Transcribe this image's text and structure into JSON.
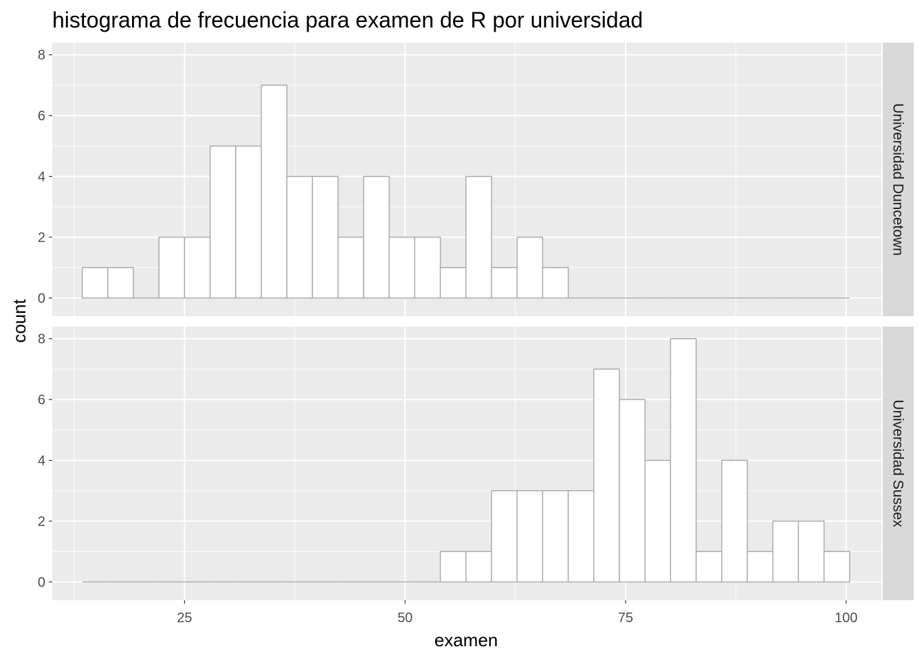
{
  "chart_data": {
    "type": "bar",
    "title": "histograma de frecuencia para examen de R por universidad",
    "xlabel": "examen",
    "ylabel": "count",
    "xlim": [
      10,
      104
    ],
    "ylim": [
      -0.6,
      8.4
    ],
    "x_ticks": [
      25,
      50,
      75,
      100
    ],
    "x_tick_labels": [
      "25",
      "50",
      "75",
      "100"
    ],
    "y_ticks": [
      0,
      2,
      4,
      6,
      8
    ],
    "y_tick_labels": [
      "0",
      "2",
      "4",
      "6",
      "8"
    ],
    "grid": true,
    "facet_layout": "rows",
    "bins": [
      {
        "start": 13.4,
        "end": 16.3
      },
      {
        "start": 16.3,
        "end": 19.2
      },
      {
        "start": 19.2,
        "end": 22.1
      },
      {
        "start": 22.1,
        "end": 25.0
      },
      {
        "start": 25.0,
        "end": 27.9
      },
      {
        "start": 27.9,
        "end": 30.8
      },
      {
        "start": 30.8,
        "end": 33.7
      },
      {
        "start": 33.7,
        "end": 36.6
      },
      {
        "start": 36.6,
        "end": 39.5
      },
      {
        "start": 39.5,
        "end": 42.4
      },
      {
        "start": 42.4,
        "end": 45.3
      },
      {
        "start": 45.3,
        "end": 48.2
      },
      {
        "start": 48.2,
        "end": 51.1
      },
      {
        "start": 51.1,
        "end": 54.0
      },
      {
        "start": 54.0,
        "end": 56.9
      },
      {
        "start": 56.9,
        "end": 59.8
      },
      {
        "start": 59.8,
        "end": 62.7
      },
      {
        "start": 62.7,
        "end": 65.6
      },
      {
        "start": 65.6,
        "end": 68.5
      },
      {
        "start": 68.5,
        "end": 71.4
      },
      {
        "start": 71.4,
        "end": 74.3
      },
      {
        "start": 74.3,
        "end": 77.2
      },
      {
        "start": 77.2,
        "end": 80.1
      },
      {
        "start": 80.1,
        "end": 83.0
      },
      {
        "start": 83.0,
        "end": 85.9
      },
      {
        "start": 85.9,
        "end": 88.8
      },
      {
        "start": 88.8,
        "end": 91.7
      },
      {
        "start": 91.7,
        "end": 94.6
      },
      {
        "start": 94.6,
        "end": 97.5
      },
      {
        "start": 97.5,
        "end": 100.4
      }
    ],
    "facets": [
      {
        "label": "Universidad Duncetown",
        "counts": [
          1,
          1,
          0,
          2,
          2,
          5,
          5,
          7,
          4,
          4,
          2,
          4,
          2,
          2,
          1,
          4,
          1,
          2,
          1,
          0,
          0,
          0,
          0,
          0,
          0,
          0,
          0,
          0,
          0,
          0
        ]
      },
      {
        "label": "Universidad Sussex",
        "counts": [
          0,
          0,
          0,
          0,
          0,
          0,
          0,
          0,
          0,
          0,
          0,
          0,
          0,
          0,
          1,
          1,
          3,
          3,
          3,
          3,
          7,
          6,
          4,
          8,
          1,
          4,
          1,
          2,
          2,
          1
        ]
      }
    ],
    "colors": {
      "panel_background": "#ebebeb",
      "grid_major": "#ffffff",
      "strip_background": "#d9d9d9",
      "bar_fill": "#ffffff",
      "bar_outline": "#a6a6a6",
      "tick_text": "#4d4d4d",
      "tick_mark": "#333333"
    }
  }
}
